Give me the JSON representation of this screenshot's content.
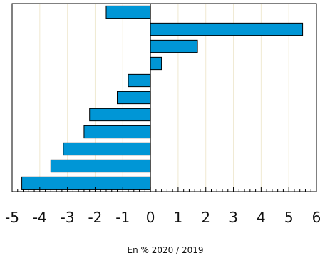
{
  "chart_data": {
    "type": "bar",
    "orientation": "horizontal",
    "title": "",
    "xlabel": "En % 2020 / 2019",
    "ylabel": "",
    "xlim": [
      -5,
      6
    ],
    "x_ticks": [
      -5,
      -4,
      -3,
      -2,
      -1,
      0,
      1,
      2,
      3,
      4,
      5,
      6
    ],
    "x_tick_labels": [
      "-5",
      "-4",
      "-3",
      "-2",
      "-1",
      "0",
      "1",
      "2",
      "3",
      "4",
      "5",
      "6"
    ],
    "minor_tick_step": 0.2,
    "grid": "vertical",
    "category_labels_shown": false,
    "values": [
      -1.6,
      5.5,
      1.7,
      0.4,
      -0.8,
      -1.2,
      -2.2,
      -2.4,
      -3.15,
      -3.6,
      -4.65
    ],
    "colors": {
      "bar": "#0096d6",
      "bar_edge": "#000000",
      "grid": "#f0ead2",
      "axis": "#000000"
    }
  }
}
